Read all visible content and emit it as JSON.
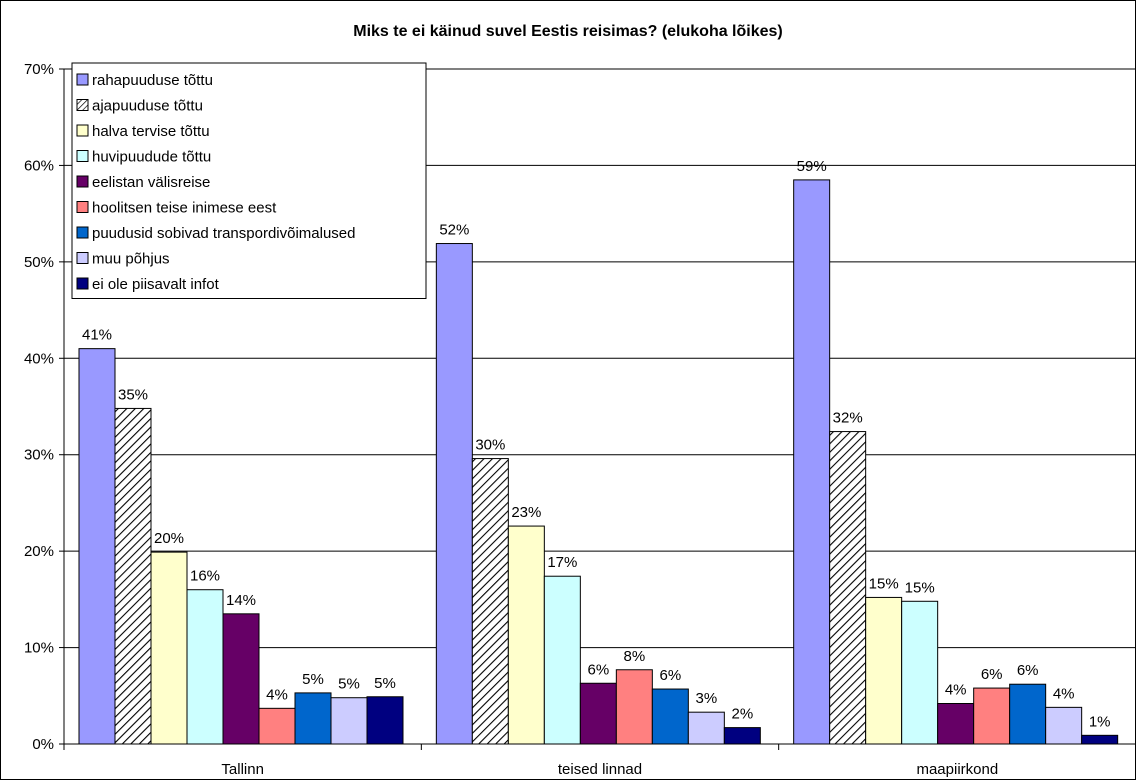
{
  "chart_data": {
    "type": "bar",
    "title": "Miks te ei käinud suvel Eestis reisimas? (elukoha lõikes)",
    "xlabel": "",
    "ylabel": "",
    "ylim": [
      0,
      70
    ],
    "y_ticks": [
      0,
      10,
      20,
      30,
      40,
      50,
      60,
      70
    ],
    "y_tick_format": "percent",
    "grid": true,
    "legend_position": "top-left",
    "categories": [
      "Tallinn",
      "teised linnad",
      "maapiirkond"
    ],
    "series": [
      {
        "name": "rahapuuduse tõttu",
        "color": "#9999ff",
        "pattern": "solid",
        "values": [
          41,
          52,
          59
        ],
        "displayed_values": [
          41,
          51.9,
          58.5
        ],
        "labels": [
          "41%",
          "52%",
          "59%"
        ]
      },
      {
        "name": "ajapuuduse tõttu",
        "color": "#ffffff",
        "pattern": "diagonal-hatch",
        "values": [
          35,
          30,
          32
        ],
        "displayed_values": [
          34.8,
          29.6,
          32.4
        ],
        "labels": [
          "35%",
          "30%",
          "32%"
        ]
      },
      {
        "name": "halva tervise tõttu",
        "color": "#ffffcc",
        "pattern": "solid",
        "values": [
          20,
          23,
          15
        ],
        "displayed_values": [
          19.9,
          22.6,
          15.2
        ],
        "labels": [
          "20%",
          "23%",
          "15%"
        ]
      },
      {
        "name": "huvipuudude tõttu",
        "color": "#ccffff",
        "pattern": "solid",
        "values": [
          16,
          17,
          15
        ],
        "displayed_values": [
          16,
          17.4,
          14.8
        ],
        "labels": [
          "16%",
          "17%",
          "15%"
        ]
      },
      {
        "name": "eelistan välisreise",
        "color": "#660066",
        "pattern": "solid",
        "values": [
          14,
          6,
          4
        ],
        "displayed_values": [
          13.5,
          6.3,
          4.2
        ],
        "labels": [
          "14%",
          "6%",
          "4%"
        ]
      },
      {
        "name": "hoolitsen teise inimese eest",
        "color": "#ff8080",
        "pattern": "solid",
        "values": [
          4,
          8,
          6
        ],
        "displayed_values": [
          3.7,
          7.7,
          5.8
        ],
        "labels": [
          "4%",
          "8%",
          "6%"
        ]
      },
      {
        "name": "puudusid sobivad transpordivõimalused",
        "color": "#0066cc",
        "pattern": "solid",
        "values": [
          5,
          6,
          6
        ],
        "displayed_values": [
          5.3,
          5.7,
          6.2
        ],
        "labels": [
          "5%",
          "6%",
          "6%"
        ]
      },
      {
        "name": "muu põhjus",
        "color": "#ccccff",
        "pattern": "solid",
        "values": [
          5,
          3,
          4
        ],
        "displayed_values": [
          4.8,
          3.3,
          3.8
        ],
        "labels": [
          "5%",
          "3%",
          "4%"
        ]
      },
      {
        "name": "ei ole piisavalt infot",
        "color": "#000080",
        "pattern": "solid",
        "values": [
          5,
          2,
          1
        ],
        "displayed_values": [
          4.9,
          1.7,
          0.9
        ],
        "labels": [
          "5%",
          "2%",
          "1%"
        ]
      }
    ]
  }
}
